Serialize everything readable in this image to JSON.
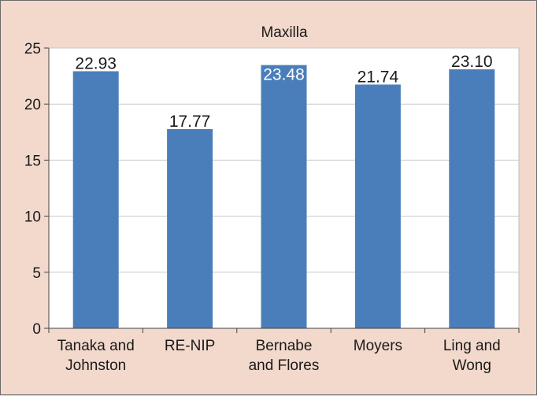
{
  "chart_data": {
    "type": "bar",
    "title": "Maxilla",
    "xlabel": "",
    "ylabel": "",
    "ylim": [
      0,
      25
    ],
    "yticks": [
      0,
      5,
      10,
      15,
      20,
      25
    ],
    "grid": true,
    "categories": [
      [
        "Tanaka and",
        "Johnston"
      ],
      [
        "RE-NIP"
      ],
      [
        "Bernabe",
        "and Flores"
      ],
      [
        "Moyers"
      ],
      [
        "Ling and",
        "Wong"
      ]
    ],
    "values": [
      22.93,
      17.77,
      23.48,
      21.74,
      23.1
    ],
    "data_labels": [
      "22.93",
      "17.77",
      "23.48",
      "21.74",
      "23.10"
    ],
    "colors": {
      "bar": "#4a7ebb",
      "plot_background": "#ffffff",
      "page_background": "#f2d9cc",
      "grid": "#c8c8c8",
      "label_inside": "#ffffff",
      "label_outside": "#1a1a1a"
    }
  }
}
